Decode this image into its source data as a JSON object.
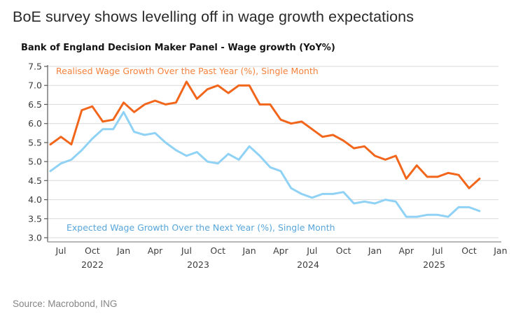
{
  "page": {
    "title": "BoE survey shows levelling off in wage growth expectations",
    "source": "Source: Macrobond, ING"
  },
  "chart_data": {
    "type": "line",
    "title": "Bank of England Decision Maker Panel - Wage growth (YoY%)",
    "x": [
      "Jun 2022",
      "Jul 2022",
      "Aug 2022",
      "Sep 2022",
      "Oct 2022",
      "Nov 2022",
      "Dec 2022",
      "Jan 2023",
      "Feb 2023",
      "Mar 2023",
      "Apr 2023",
      "May 2023",
      "Jun 2023",
      "Jul 2023",
      "Aug 2023",
      "Sep 2023",
      "Oct 2023",
      "Nov 2023",
      "Dec 2023",
      "Jan 2024",
      "Feb 2024",
      "Mar 2024",
      "Apr 2024",
      "May 2024",
      "Jun 2024",
      "Jul 2024",
      "Aug 2024",
      "Sep 2024",
      "Oct 2024",
      "Nov 2024",
      "Dec 2024",
      "Jan 2025",
      "Feb 2025",
      "Mar 2025",
      "Apr 2025",
      "May 2025",
      "Jun 2025",
      "Jul 2025",
      "Aug 2025",
      "Sep 2025",
      "Oct 2025",
      "Nov 2025"
    ],
    "series": [
      {
        "name": "Realised Wage Growth Over the Past Year (%), Single Month",
        "color": "#f2661c",
        "label_color": "#f5823d",
        "values": [
          5.45,
          5.65,
          5.45,
          6.35,
          6.45,
          6.05,
          6.1,
          6.55,
          6.3,
          6.5,
          6.6,
          6.5,
          6.55,
          7.1,
          6.65,
          6.9,
          7.0,
          6.8,
          7.0,
          7.0,
          6.5,
          6.5,
          6.1,
          6.0,
          6.05,
          5.85,
          5.65,
          5.7,
          5.55,
          5.35,
          5.4,
          5.15,
          5.05,
          5.15,
          4.55,
          4.9,
          4.6,
          4.6,
          4.7,
          4.65,
          4.3,
          4.55
        ]
      },
      {
        "name": "Expected Wage Growth Over the Next Year (%), Single Month",
        "color": "#8fd2f5",
        "label_color": "#58a6dc",
        "values": [
          4.75,
          4.95,
          5.05,
          5.3,
          5.6,
          5.85,
          5.85,
          6.3,
          5.78,
          5.7,
          5.75,
          5.5,
          5.3,
          5.15,
          5.25,
          5.0,
          4.95,
          5.2,
          5.05,
          5.4,
          5.15,
          4.85,
          4.75,
          4.3,
          4.15,
          4.05,
          4.15,
          4.15,
          4.2,
          3.9,
          3.95,
          3.9,
          4.0,
          3.95,
          3.55,
          3.55,
          3.6,
          3.6,
          3.55,
          3.8,
          3.8,
          3.7
        ]
      }
    ],
    "ylim": [
      3.0,
      7.5
    ],
    "y_ticks": [
      7.5,
      7.0,
      6.5,
      6.0,
      5.5,
      5.0,
      4.5,
      4.0,
      3.5,
      3.0
    ],
    "y_tick_labels": [
      "7.5",
      "7.0",
      "6.5",
      "6.0",
      "5.5",
      "5.0",
      "4.5",
      "4.0",
      "3.5",
      "3.0"
    ],
    "x_tick_labels": [
      "Jul",
      "Oct",
      "Jan",
      "Apr",
      "Jul",
      "Oct",
      "Jan",
      "Apr",
      "Jul",
      "Oct",
      "Jan",
      "Apr",
      "Jul",
      "Oct",
      "Jan"
    ],
    "year_labels": [
      "2022",
      "2023",
      "2024",
      "2025"
    ],
    "grid": "horizontal",
    "legend_position": "inline-annotations",
    "colors": {
      "grid": "#d9d9d9",
      "axis": "#595959",
      "x_axis": "#8c8c8c",
      "tick_text": "#3d3d3d"
    }
  }
}
